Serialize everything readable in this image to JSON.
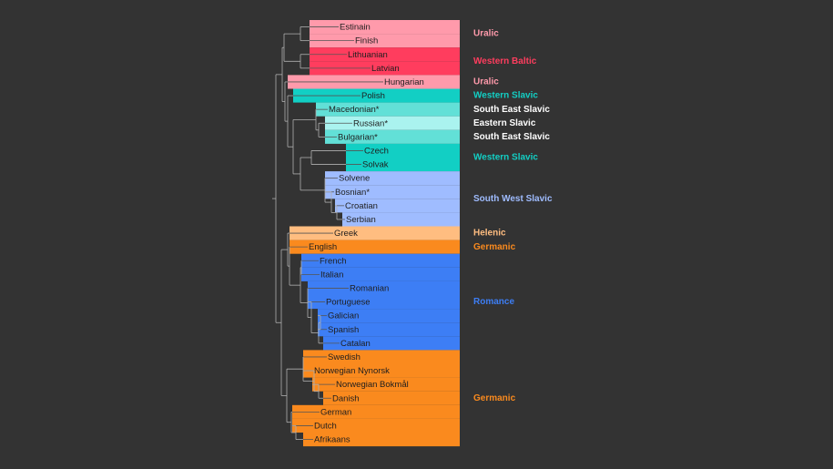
{
  "leaves": [
    "Estinain",
    "Finish",
    "Lithuanian",
    "Latvian",
    "Hungarian",
    "Polish",
    "Macedonian*",
    "Russian*",
    "Bulgarian*",
    "Czech",
    "Solvak",
    "Solvene",
    "Bosnian*",
    "Croatian",
    "Serbian",
    "Greek",
    "English",
    "French",
    "Italian",
    "Romanian",
    "Portuguese",
    "Galician",
    "Spanish",
    "Catalan",
    "Swedish",
    "Norwegian Nynorsk",
    "Norwegian Bokmål",
    "Danish",
    "German",
    "Dutch",
    "Afrikaans"
  ],
  "groups": [
    "Uralic",
    "Western Baltic",
    "Uralic",
    "Western Slavic",
    "South East Slavic",
    "Eastern Slavic",
    "South East Slavic",
    "Western Slavic",
    "South West Slavic",
    "Helenic",
    "Germanic",
    "Romance",
    "Germanic"
  ]
}
